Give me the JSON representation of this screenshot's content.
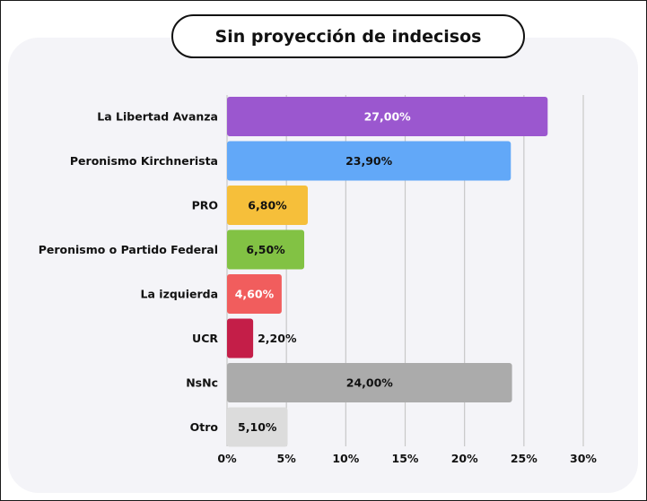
{
  "chart_data": {
    "type": "bar",
    "orientation": "horizontal",
    "title": "Sin proyección de indecisos",
    "categories": [
      "La Libertad Avanza",
      "Peronismo Kirchnerista",
      "PRO",
      "Peronismo o Partido Federal",
      "La izquierda",
      "UCR",
      "NsNc",
      "Otro"
    ],
    "values": [
      27.0,
      23.9,
      6.8,
      6.5,
      4.6,
      2.2,
      24.0,
      5.1
    ],
    "value_labels": [
      "27,00%",
      "23,90%",
      "6,80%",
      "6,50%",
      "4,60%",
      "2,20%",
      "24,00%",
      "5,10%"
    ],
    "colors": [
      "#9b57cf",
      "#62a8f8",
      "#f6bf3a",
      "#82c244",
      "#f15d5d",
      "#c41e48",
      "#ababab",
      "#dcdcdc"
    ],
    "label_colors": [
      "#ffffff",
      "#111111",
      "#111111",
      "#111111",
      "#ffffff",
      "#111111",
      "#111111",
      "#111111"
    ],
    "xlim": [
      0,
      30
    ],
    "xticks": [
      0,
      5,
      10,
      15,
      20,
      25,
      30
    ],
    "xtick_labels": [
      "0%",
      "5%",
      "10%",
      "15%",
      "20%",
      "25%",
      "30%"
    ],
    "xlabel": "",
    "ylabel": "",
    "grid": true,
    "legend": "none"
  }
}
